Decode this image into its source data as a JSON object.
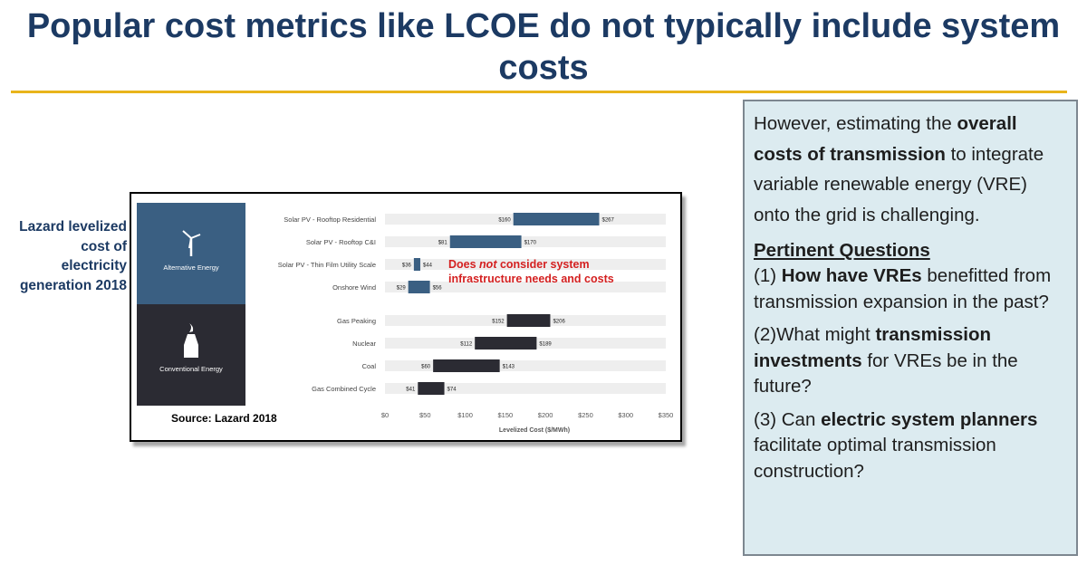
{
  "title": "Popular cost metrics like LCOE do not typically include system costs",
  "side_label": "Lazard levelized cost of electricity generation 2018",
  "source": "Source: Lazard 2018",
  "annotation": {
    "prefix": "Does ",
    "emphasis": "not",
    "suffix": " consider system infrastructure needs and costs"
  },
  "info_box": {
    "intro": {
      "pre": "However, estimating the ",
      "bold": "overall costs of transmission",
      "post": " to integrate variable renewable energy (VRE) onto the grid is challenging."
    },
    "heading": "Pertinent Questions",
    "q1": {
      "num": "(1) ",
      "bold": "How have VREs",
      "post": " benefitted from transmission expansion in the past?"
    },
    "q2": {
      "num": "(2)",
      "pre": "What might ",
      "bold": "transmission investments",
      "post": " for VREs be in the future?"
    },
    "q3": {
      "num": "(3) Can ",
      "bold": "electric system planners",
      "post": " facilitate optimal transmission construction?"
    }
  },
  "colors": {
    "title": "#1c3a63",
    "rule": "#e8b41c",
    "alt_energy": "#3a5f82",
    "conv_energy": "#2b2b33",
    "annotation": "#d42020",
    "box_bg": "#dcebf0"
  },
  "chart_data": {
    "type": "bar",
    "orientation": "horizontal-floating",
    "xlabel": "Levelized Cost ($/MWh)",
    "xlim": [
      0,
      350
    ],
    "xticks": [
      0,
      50,
      100,
      150,
      200,
      250,
      300,
      350
    ],
    "tick_labels": [
      "$0",
      "$50",
      "$100",
      "$150",
      "$200",
      "$250",
      "$300",
      "$350"
    ],
    "groups": [
      {
        "name": "Alternative Energy",
        "icon": "wind-turbine-icon",
        "color": "#3a5f82",
        "rows": [
          {
            "label": "Solar PV - Rooftop Residential",
            "low": 160,
            "high": 267,
            "low_label": "$160",
            "high_label": "$267"
          },
          {
            "label": "Solar PV - Rooftop C&I",
            "low": 81,
            "high": 170,
            "low_label": "$81",
            "high_label": "$170"
          },
          {
            "label": "Solar PV - Thin Film Utility Scale",
            "low": 36,
            "high": 44,
            "low_label": "$36",
            "high_label": "$44"
          },
          {
            "label": "Onshore Wind",
            "low": 29,
            "high": 56,
            "low_label": "$29",
            "high_label": "$56"
          }
        ]
      },
      {
        "name": "Conventional Energy",
        "icon": "power-plant-icon",
        "color": "#2b2b33",
        "rows": [
          {
            "label": "Gas Peaking",
            "low": 152,
            "high": 206,
            "low_label": "$152",
            "high_label": "$206"
          },
          {
            "label": "Nuclear",
            "low": 112,
            "high": 189,
            "low_label": "$112",
            "high_label": "$189"
          },
          {
            "label": "Coal",
            "low": 60,
            "high": 143,
            "low_label": "$60",
            "high_label": "$143"
          },
          {
            "label": "Gas Combined Cycle",
            "low": 41,
            "high": 74,
            "low_label": "$41",
            "high_label": "$74"
          }
        ]
      }
    ]
  }
}
